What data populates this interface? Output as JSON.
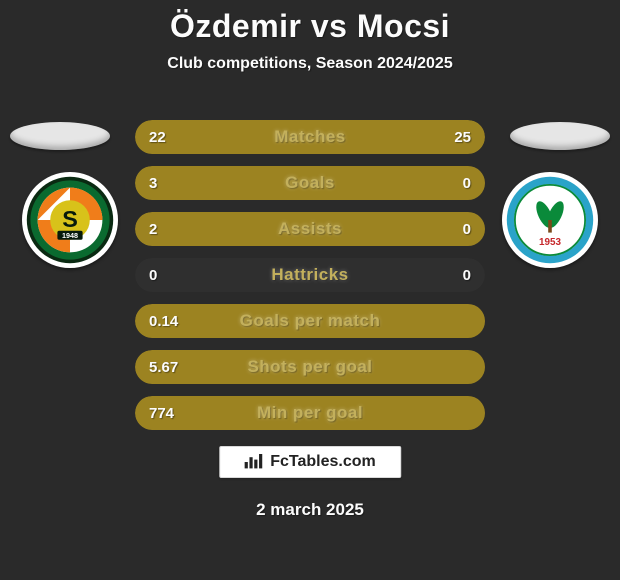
{
  "colors": {
    "background": "#2a2a2a",
    "text": "#fcfcfc",
    "track": "#2f2f2f",
    "player1_fill": "#9c8321",
    "player2_fill": "#9c8321",
    "label": "#c3b05c",
    "ellipse_left": "#e6e6e6",
    "ellipse_right": "#e6e6e6"
  },
  "title": {
    "text": "Özdemir vs Mocsi",
    "fontsize": 32
  },
  "subtitle": {
    "text": "Club competitions, Season 2024/2025",
    "fontsize": 16
  },
  "rows_fontsize": {
    "label": 17,
    "value": 15
  },
  "stats": [
    {
      "label": "Matches",
      "left_val": "22",
      "right_val": "25",
      "left_pct": 46.8,
      "right_pct": 53.2
    },
    {
      "label": "Goals",
      "left_val": "3",
      "right_val": "0",
      "left_pct": 100,
      "right_pct": 0
    },
    {
      "label": "Assists",
      "left_val": "2",
      "right_val": "0",
      "left_pct": 100,
      "right_pct": 0
    },
    {
      "label": "Hattricks",
      "left_val": "0",
      "right_val": "0",
      "left_pct": 0,
      "right_pct": 0
    },
    {
      "label": "Goals per match",
      "left_val": "0.14",
      "right_val": "",
      "left_pct": 100,
      "right_pct": 0
    },
    {
      "label": "Shots per goal",
      "left_val": "5.67",
      "right_val": "",
      "left_pct": 100,
      "right_pct": 0
    },
    {
      "label": "Min per goal",
      "left_val": "774",
      "right_val": "",
      "left_pct": 100,
      "right_pct": 0
    }
  ],
  "brand": "FcTables.com",
  "date": "2 march 2025",
  "date_fontsize": 17,
  "badge_left": {
    "outer_ring": "#0a6a2f",
    "inner_bg": "#ffffff",
    "stripe": "#f07d1a",
    "core": "#d8c21a",
    "letter": "S",
    "year": "1948",
    "bottom_band_text": ""
  },
  "badge_right": {
    "outer_ring": "#0a8a3a",
    "inner_bg": "#ffffff",
    "leaf": "#0a8a3a",
    "year": "1953",
    "top_text": "",
    "arc_color": "#0a8a3a"
  }
}
